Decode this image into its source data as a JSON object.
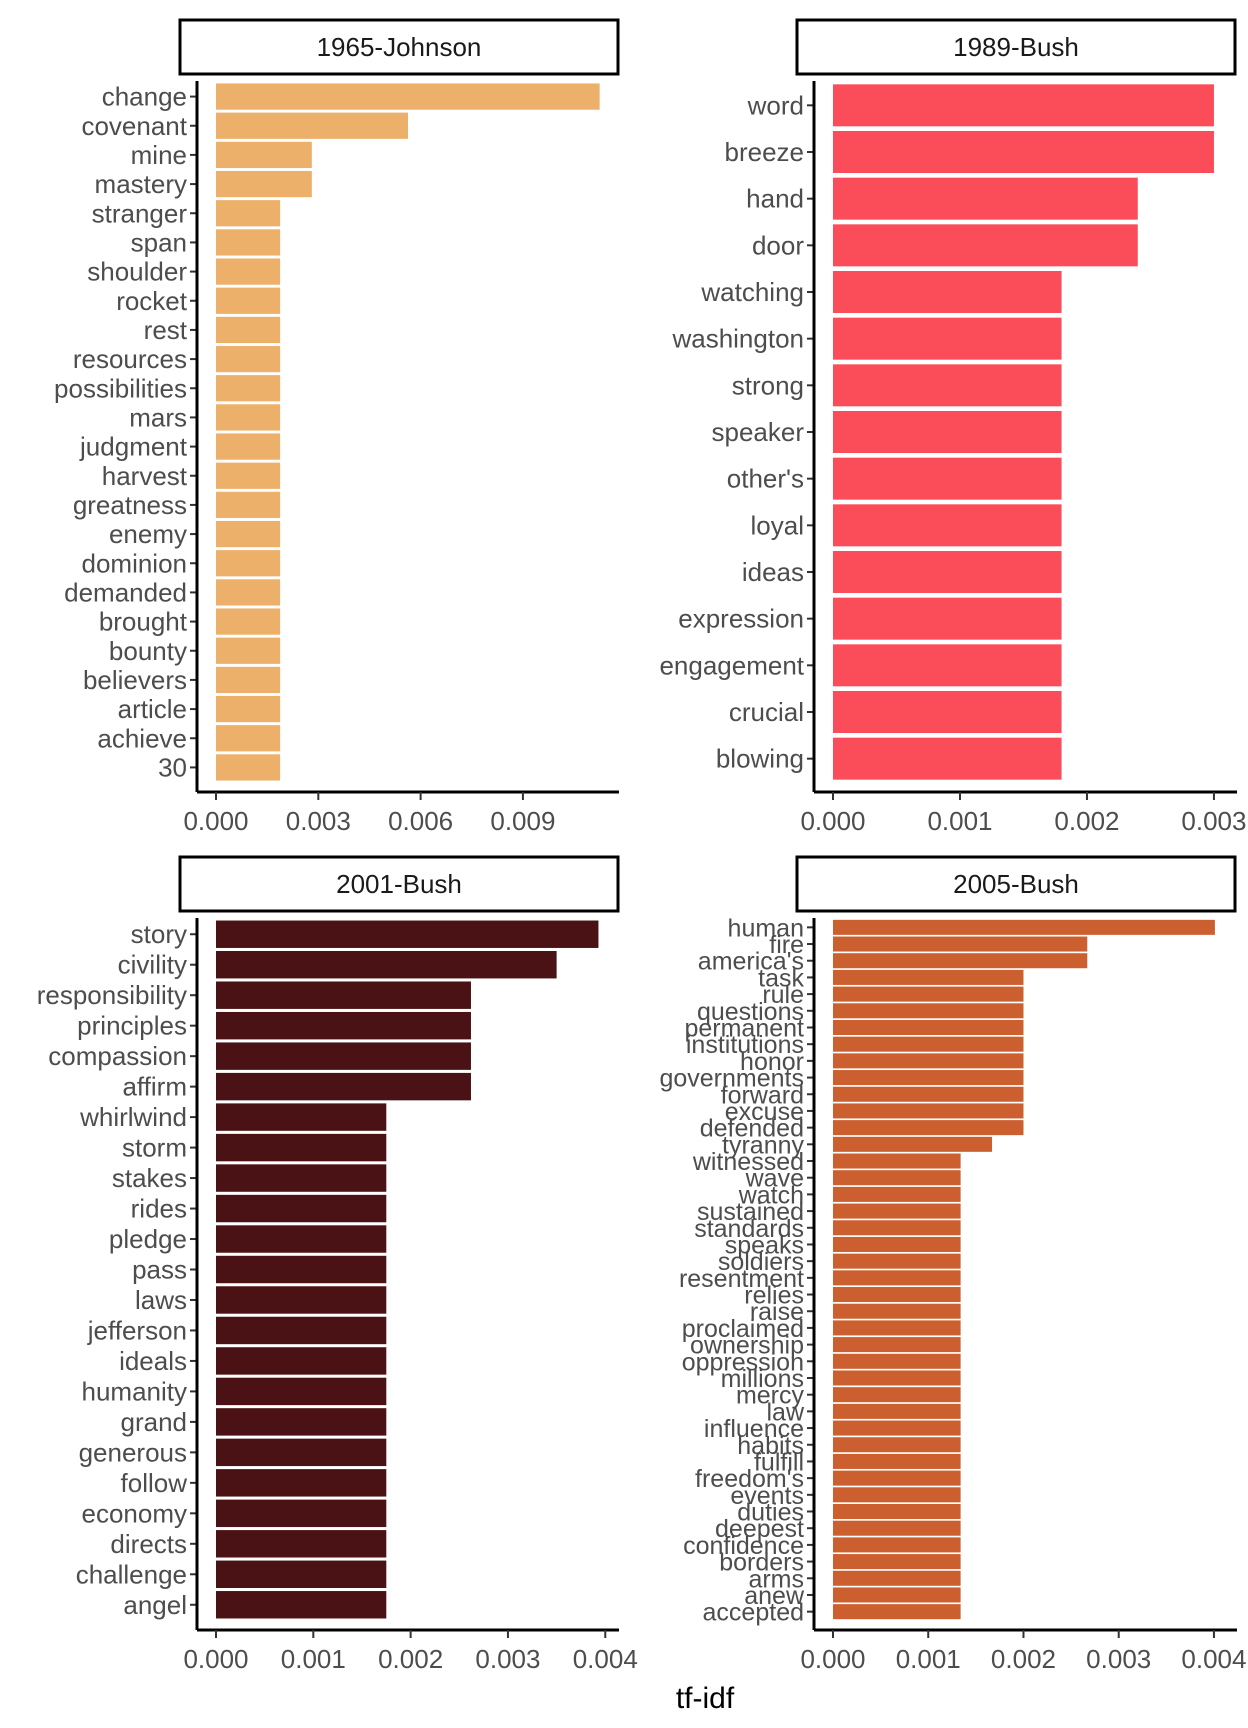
{
  "xlabel": "tf-idf",
  "chart_data": [
    {
      "type": "bar",
      "orientation": "horizontal",
      "title": "1965-Johnson",
      "color": "#EDB06B",
      "xlim": [
        0,
        0.0117
      ],
      "xticks": [
        0.0,
        0.003,
        0.006,
        0.009
      ],
      "xtick_labels": [
        "0.000",
        "0.003",
        "0.006",
        "0.009"
      ],
      "categories": [
        "change",
        "covenant",
        "mine",
        "mastery",
        "stranger",
        "span",
        "shoulder",
        "rocket",
        "rest",
        "resources",
        "possibilities",
        "mars",
        "judgment",
        "harvest",
        "greatness",
        "enemy",
        "dominion",
        "demanded",
        "brought",
        "bounty",
        "believers",
        "article",
        "achieve",
        "30"
      ],
      "values": [
        0.01125,
        0.00563,
        0.00281,
        0.00281,
        0.00188,
        0.00188,
        0.00188,
        0.00188,
        0.00188,
        0.00188,
        0.00188,
        0.00188,
        0.00188,
        0.00188,
        0.00188,
        0.00188,
        0.00188,
        0.00188,
        0.00188,
        0.00188,
        0.00188,
        0.00188,
        0.00188,
        0.00188
      ]
    },
    {
      "type": "bar",
      "orientation": "horizontal",
      "title": "1989-Bush",
      "color": "#FA4C59",
      "xlim": [
        0,
        0.00315
      ],
      "xticks": [
        0.0,
        0.001,
        0.002,
        0.003
      ],
      "xtick_labels": [
        "0.000",
        "0.001",
        "0.002",
        "0.003"
      ],
      "categories": [
        "word",
        "breeze",
        "hand",
        "door",
        "watching",
        "washington",
        "strong",
        "speaker",
        "other's",
        "loyal",
        "ideas",
        "expression",
        "engagement",
        "crucial",
        "blowing"
      ],
      "values": [
        0.003,
        0.003,
        0.0024,
        0.0024,
        0.0018,
        0.0018,
        0.0018,
        0.0018,
        0.0018,
        0.0018,
        0.0018,
        0.0018,
        0.0018,
        0.0018,
        0.0018
      ]
    },
    {
      "type": "bar",
      "orientation": "horizontal",
      "title": "2001-Bush",
      "color": "#4A1214",
      "xlim": [
        0,
        0.0041
      ],
      "xticks": [
        0.0,
        0.001,
        0.002,
        0.003,
        0.004
      ],
      "xtick_labels": [
        "0.000",
        "0.001",
        "0.002",
        "0.003",
        "0.004"
      ],
      "categories": [
        "story",
        "civility",
        "responsibility",
        "principles",
        "compassion",
        "affirm",
        "whirlwind",
        "storm",
        "stakes",
        "rides",
        "pledge",
        "pass",
        "laws",
        "jefferson",
        "ideals",
        "humanity",
        "grand",
        "generous",
        "follow",
        "economy",
        "directs",
        "challenge",
        "angel"
      ],
      "values": [
        0.00393,
        0.0035,
        0.00262,
        0.00262,
        0.00262,
        0.00262,
        0.00175,
        0.00175,
        0.00175,
        0.00175,
        0.00175,
        0.00175,
        0.00175,
        0.00175,
        0.00175,
        0.00175,
        0.00175,
        0.00175,
        0.00175,
        0.00175,
        0.00175,
        0.00175,
        0.00175
      ]
    },
    {
      "type": "bar",
      "orientation": "horizontal",
      "title": "2005-Bush",
      "color": "#CC5F30",
      "xlim": [
        0,
        0.0042
      ],
      "xticks": [
        0.0,
        0.001,
        0.002,
        0.003,
        0.004
      ],
      "xtick_labels": [
        "0.000",
        "0.001",
        "0.002",
        "0.003",
        "0.004"
      ],
      "categories": [
        "human",
        "fire",
        "america's",
        "task",
        "rule",
        "questions",
        "permanent",
        "institutions",
        "honor",
        "governments",
        "forward",
        "excuse",
        "defended",
        "tyranny",
        "witnessed",
        "wave",
        "watch",
        "sustained",
        "standards",
        "speaks",
        "soldiers",
        "resentment",
        "relies",
        "raise",
        "proclaimed",
        "ownership",
        "oppression",
        "millions",
        "mercy",
        "law",
        "influence",
        "habits",
        "fulfill",
        "freedom's",
        "events",
        "duties",
        "deepest",
        "confidence",
        "borders",
        "arms",
        "anew",
        "accepted"
      ],
      "values": [
        0.00401,
        0.00267,
        0.00267,
        0.002,
        0.002,
        0.002,
        0.002,
        0.002,
        0.002,
        0.002,
        0.002,
        0.002,
        0.002,
        0.00167,
        0.00134,
        0.00134,
        0.00134,
        0.00134,
        0.00134,
        0.00134,
        0.00134,
        0.00134,
        0.00134,
        0.00134,
        0.00134,
        0.00134,
        0.00134,
        0.00134,
        0.00134,
        0.00134,
        0.00134,
        0.00134,
        0.00134,
        0.00134,
        0.00134,
        0.00134,
        0.00134,
        0.00134,
        0.00134,
        0.00134,
        0.00134,
        0.00134
      ]
    }
  ]
}
